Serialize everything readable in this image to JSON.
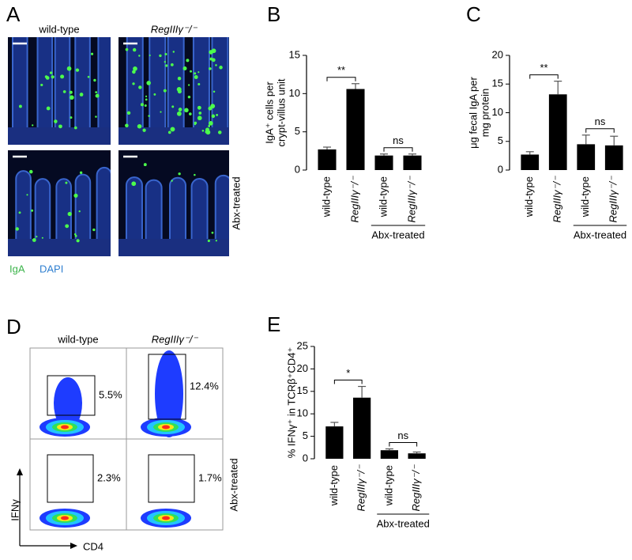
{
  "panel_labels": [
    "A",
    "B",
    "C",
    "D",
    "E"
  ],
  "panel_a": {
    "columns": [
      "wild-type",
      "RegIIIγ⁻/⁻"
    ],
    "row_label": "Abx-treated",
    "stains": [
      "IgA",
      "DAPI"
    ]
  },
  "panel_d": {
    "columns": [
      "wild-type",
      "RegIIIγ⁻/⁻"
    ],
    "row_label": "Abx-treated",
    "percentages": [
      "5.5%",
      "12.4%",
      "2.3%",
      "1.7%"
    ],
    "y_axis": "IFNγ",
    "x_axis": "CD4"
  },
  "chart_data": [
    {
      "type": "bar",
      "ylabel": [
        "IgA⁺ cells per",
        "crypt-villus unit"
      ],
      "categories": [
        "wild-type",
        "RegIIIγ⁻/⁻",
        "wild-type",
        "RegIIIγ⁻/⁻"
      ],
      "values": [
        2.7,
        10.6,
        1.9,
        1.9
      ],
      "errors": [
        0.3,
        0.7,
        0.2,
        0.2
      ],
      "color": "#000000",
      "ylim": [
        0,
        15
      ],
      "yticks": [
        0,
        5,
        10,
        15
      ],
      "significance": [
        "**",
        "ns"
      ],
      "group_label": "Abx-treated"
    },
    {
      "type": "bar",
      "ylabel": [
        "μg fecal IgA per",
        "mg protein"
      ],
      "categories": [
        "wild-type",
        "RegIIIγ⁻/⁻",
        "wild-type",
        "RegIIIγ⁻/⁻"
      ],
      "values": [
        2.7,
        13.2,
        4.5,
        4.3
      ],
      "errors": [
        0.5,
        2.3,
        1.6,
        1.6
      ],
      "color": "#000000",
      "ylim": [
        0,
        20
      ],
      "yticks": [
        0,
        5,
        10,
        15,
        20
      ],
      "significance": [
        "**",
        "ns"
      ],
      "group_label": "Abx-treated"
    },
    {
      "type": "bar",
      "ylabel": [
        "% IFNγ⁺ in TCRβ⁺CD4⁺"
      ],
      "categories": [
        "wild-type",
        "RegIIIγ⁻/⁻",
        "wild-type",
        "RegIIIγ⁻/⁻"
      ],
      "values": [
        7.2,
        13.6,
        1.9,
        1.2
      ],
      "errors": [
        0.9,
        2.5,
        0.3,
        0.3
      ],
      "color": "#000000",
      "ylim": [
        0,
        25
      ],
      "yticks": [
        0,
        5,
        10,
        15,
        20,
        25
      ],
      "significance": [
        "*",
        "ns"
      ],
      "group_label": "Abx-treated"
    }
  ]
}
